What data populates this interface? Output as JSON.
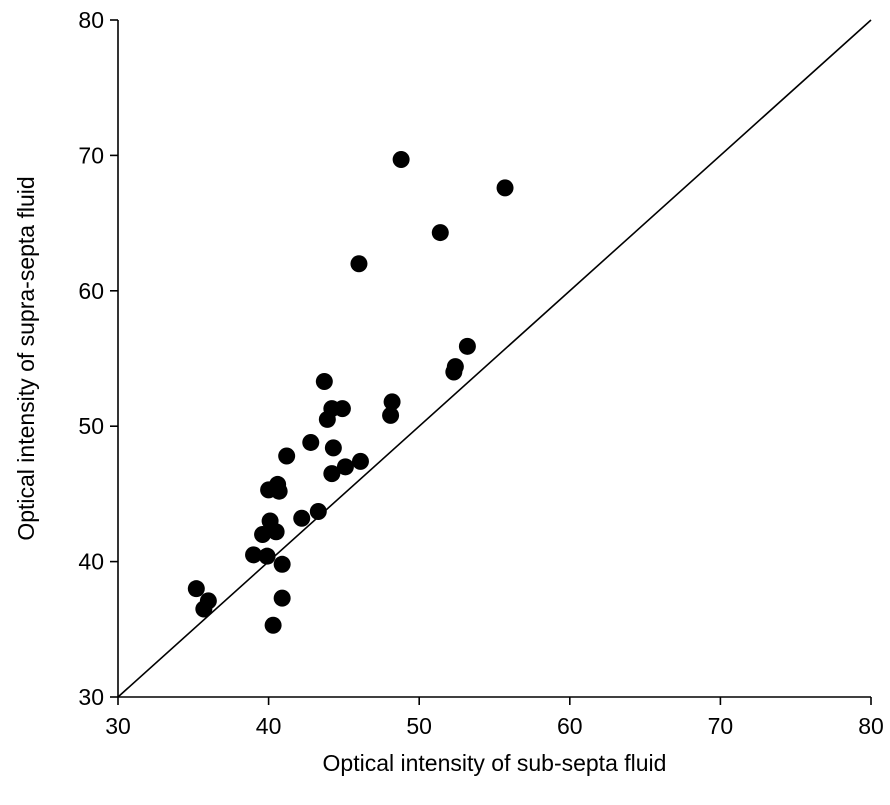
{
  "chart_data": {
    "type": "scatter",
    "title": "",
    "xlabel": "Optical intensity of sub-septa fluid",
    "ylabel": "Optical intensity of supra-septa fluid",
    "xlim": [
      30,
      80
    ],
    "ylim": [
      30,
      80
    ],
    "xticks": [
      30,
      40,
      50,
      60,
      70,
      80
    ],
    "yticks": [
      30,
      40,
      50,
      60,
      70,
      80
    ],
    "xtick_labels": [
      "30",
      "40",
      "50",
      "60",
      "70",
      "80"
    ],
    "ytick_labels": [
      "30",
      "40",
      "50",
      "60",
      "70",
      "80"
    ],
    "grid": false,
    "reference_line": {
      "type": "identity",
      "from": [
        30,
        30
      ],
      "to": [
        80,
        80
      ]
    },
    "marker_color": "#000000",
    "series": [
      {
        "points": [
          [
            35.2,
            38.0
          ],
          [
            35.7,
            36.5
          ],
          [
            36.0,
            37.1
          ],
          [
            39.0,
            40.5
          ],
          [
            39.6,
            42.0
          ],
          [
            39.9,
            40.4
          ],
          [
            40.1,
            43.0
          ],
          [
            40.0,
            45.3
          ],
          [
            40.5,
            42.2
          ],
          [
            40.6,
            45.7
          ],
          [
            40.7,
            45.2
          ],
          [
            40.9,
            39.8
          ],
          [
            40.9,
            37.3
          ],
          [
            40.3,
            35.3
          ],
          [
            41.2,
            47.8
          ],
          [
            42.2,
            43.2
          ],
          [
            42.8,
            48.8
          ],
          [
            43.3,
            43.7
          ],
          [
            43.7,
            53.3
          ],
          [
            43.9,
            50.5
          ],
          [
            44.2,
            51.3
          ],
          [
            44.2,
            46.5
          ],
          [
            44.3,
            48.4
          ],
          [
            44.9,
            51.3
          ],
          [
            45.1,
            47.0
          ],
          [
            46.0,
            62.0
          ],
          [
            46.1,
            47.4
          ],
          [
            48.1,
            50.8
          ],
          [
            48.2,
            51.8
          ],
          [
            48.8,
            69.7
          ],
          [
            51.4,
            64.3
          ],
          [
            52.3,
            54.0
          ],
          [
            52.4,
            54.4
          ],
          [
            53.2,
            55.9
          ],
          [
            55.7,
            67.6
          ]
        ]
      }
    ]
  }
}
